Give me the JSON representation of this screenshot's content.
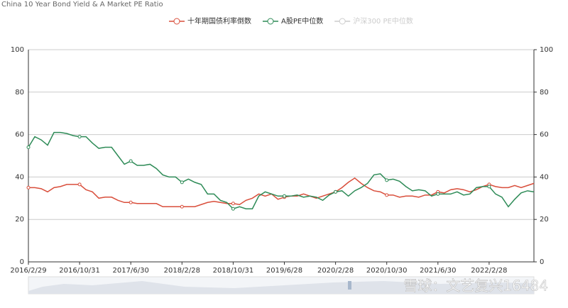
{
  "chart_data": {
    "type": "line",
    "title": "China 10 Year Bond Yield & A Market PE Ratio",
    "categories": [
      "2016/2/29",
      null,
      null,
      null,
      null,
      null,
      null,
      null,
      "2016/10/31",
      null,
      null,
      null,
      null,
      null,
      null,
      null,
      "2017/6/30",
      null,
      null,
      null,
      null,
      null,
      null,
      null,
      "2018/2/28",
      null,
      null,
      null,
      null,
      null,
      null,
      null,
      "2018/10/31",
      null,
      null,
      null,
      null,
      null,
      null,
      null,
      "2019/6/28",
      null,
      null,
      null,
      null,
      null,
      null,
      null,
      "2020/2/28",
      null,
      null,
      null,
      null,
      null,
      null,
      null,
      "2020/10/30",
      null,
      null,
      null,
      null,
      null,
      null,
      null,
      "2021/6/30",
      null,
      null,
      null,
      null,
      null,
      null,
      null,
      "2022/2/28",
      null,
      null,
      null,
      null,
      null,
      null,
      null
    ],
    "series": [
      {
        "name": "十年期国债利率倒数",
        "color": "#d94e3b",
        "values": [
          35,
          35,
          34.5,
          33,
          35,
          35.5,
          36.5,
          36.5,
          36.5,
          34,
          33,
          30,
          30.5,
          30.5,
          29,
          28,
          28,
          27.5,
          27.5,
          27.5,
          27.5,
          26,
          26,
          26,
          26,
          26,
          26,
          27,
          28,
          28.5,
          28,
          27.5,
          27.5,
          27,
          29,
          30,
          32,
          31,
          32,
          29.5,
          30.5,
          31,
          31,
          32,
          31,
          30,
          31,
          32,
          33,
          35,
          37.5,
          39.5,
          37,
          35,
          33.5,
          33,
          31.5,
          31.5,
          30.5,
          31,
          31,
          30.5,
          31.5,
          31.5,
          33,
          32.5,
          34,
          34.5,
          34,
          33,
          34,
          35.5,
          36.5,
          35.5,
          35,
          35,
          36,
          35,
          36,
          37
        ]
      },
      {
        "name": "A股PE中位数",
        "color": "#2e8b57",
        "values": [
          54,
          59,
          57.5,
          55,
          61,
          61,
          60.5,
          59.5,
          59,
          59,
          56,
          53.5,
          54,
          54,
          50,
          46,
          47.5,
          45.5,
          45.5,
          46,
          44,
          41,
          40,
          40,
          37.5,
          39,
          37.5,
          36.5,
          32,
          32,
          29,
          28,
          25,
          26,
          25,
          25,
          31,
          33,
          32,
          31,
          31,
          31,
          31.5,
          30.5,
          31,
          30.5,
          29,
          31.5,
          33,
          33.5,
          31,
          33.5,
          35,
          37,
          41,
          41.5,
          38.5,
          39,
          38,
          35.5,
          33.5,
          34,
          33.5,
          31,
          32,
          32,
          32,
          33,
          31.5,
          32,
          35,
          35.5,
          35.5,
          32,
          30.5,
          26,
          29.5,
          32.5,
          33.5,
          33
        ]
      },
      {
        "name": "沪深300 PE中位数",
        "color": "#cccccc",
        "visible": false
      }
    ],
    "ylim": [
      0,
      100
    ],
    "yticks": [
      0,
      20,
      40,
      60,
      80,
      100
    ],
    "y2lim": [
      0,
      100
    ],
    "y2ticks": [
      0,
      20,
      40,
      60,
      80,
      100
    ],
    "grid": true,
    "legend": "top",
    "watermark": "雪球：文艺复兴16484"
  }
}
